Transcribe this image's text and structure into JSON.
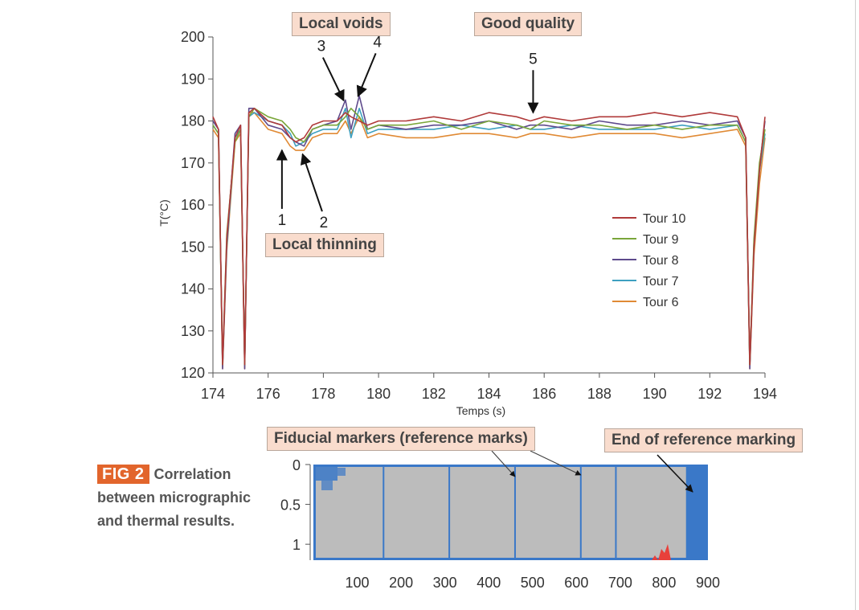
{
  "chart_data": [
    {
      "type": "line",
      "xlabel": "Temps (s)",
      "ylabel": "T(°C)",
      "xlim": [
        174,
        194
      ],
      "ylim": [
        120,
        200
      ],
      "xticks": [
        "174",
        "176",
        "178",
        "180",
        "182",
        "184",
        "186",
        "188",
        "190",
        "192",
        "194"
      ],
      "yticks": [
        "120",
        "130",
        "140",
        "150",
        "160",
        "170",
        "180",
        "190",
        "200"
      ],
      "grid": false,
      "legend_position": "right",
      "series": [
        {
          "name": "Tour 10",
          "color": "#b03a3a",
          "x": [
            174.0,
            174.2,
            174.35,
            174.5,
            174.8,
            175.0,
            175.15,
            175.3,
            175.5,
            176.0,
            176.5,
            176.8,
            177.0,
            177.3,
            177.6,
            178.0,
            178.5,
            178.8,
            179.0,
            179.3,
            179.6,
            180.0,
            181.0,
            182.0,
            183.0,
            184.0,
            185.0,
            185.5,
            186.0,
            187.0,
            188.0,
            189.0,
            190.0,
            191.0,
            192.0,
            193.0,
            193.3,
            193.45,
            193.6,
            193.8,
            194.0
          ],
          "y": [
            181,
            178,
            122,
            152,
            176,
            179,
            122,
            182,
            183,
            180,
            179,
            176,
            175,
            176,
            179,
            180,
            180,
            182,
            181,
            180,
            179,
            180,
            180,
            181,
            180,
            182,
            181,
            180,
            181,
            180,
            181,
            181,
            182,
            181,
            182,
            181,
            176,
            122,
            150,
            168,
            181
          ]
        },
        {
          "name": "Tour 9",
          "color": "#7aa63a",
          "x": [
            174.0,
            174.2,
            174.35,
            174.5,
            174.8,
            175.0,
            175.15,
            175.3,
            175.5,
            176.0,
            176.5,
            176.8,
            177.0,
            177.3,
            177.6,
            178.0,
            178.5,
            178.8,
            179.0,
            179.3,
            179.6,
            180.0,
            181.0,
            182.0,
            183.0,
            184.0,
            185.0,
            185.5,
            186.0,
            187.0,
            188.0,
            189.0,
            190.0,
            191.0,
            192.0,
            193.0,
            193.3,
            193.45,
            193.6,
            193.8,
            194.0
          ],
          "y": [
            179,
            177,
            122,
            153,
            175,
            178,
            122,
            181,
            183,
            181,
            180,
            178,
            176,
            175,
            178,
            179,
            179,
            181,
            183,
            181,
            178,
            179,
            179,
            180,
            178,
            180,
            179,
            178,
            180,
            179,
            179,
            178,
            179,
            178,
            179,
            179,
            175,
            122,
            152,
            170,
            178
          ]
        },
        {
          "name": "Tour 8",
          "color": "#5e4a8c",
          "x": [
            174.0,
            174.2,
            174.35,
            174.5,
            174.8,
            175.0,
            175.15,
            175.3,
            175.5,
            176.0,
            176.5,
            176.8,
            177.0,
            177.3,
            177.6,
            178.0,
            178.5,
            178.8,
            179.0,
            179.3,
            179.6,
            180.0,
            181.0,
            182.0,
            183.0,
            184.0,
            185.0,
            185.5,
            186.0,
            187.0,
            188.0,
            189.0,
            190.0,
            191.0,
            192.0,
            193.0,
            193.3,
            193.45,
            193.6,
            193.8,
            194.0
          ],
          "y": [
            180,
            178,
            121,
            151,
            177,
            179,
            121,
            183,
            183,
            179,
            178,
            176,
            175,
            174,
            178,
            179,
            180,
            185,
            178,
            186,
            178,
            179,
            178,
            179,
            179,
            180,
            178,
            179,
            179,
            178,
            180,
            179,
            179,
            180,
            179,
            180,
            176,
            121,
            151,
            169,
            180
          ]
        },
        {
          "name": "Tour 7",
          "color": "#3ea0c0",
          "x": [
            174.0,
            174.2,
            174.35,
            174.5,
            174.8,
            175.0,
            175.15,
            175.3,
            175.5,
            176.0,
            176.5,
            176.8,
            177.0,
            177.3,
            177.6,
            178.0,
            178.5,
            178.8,
            179.0,
            179.3,
            179.6,
            180.0,
            181.0,
            182.0,
            183.0,
            184.0,
            185.0,
            185.5,
            186.0,
            187.0,
            188.0,
            189.0,
            190.0,
            191.0,
            192.0,
            193.0,
            193.3,
            193.45,
            193.6,
            193.8,
            194.0
          ],
          "y": [
            179,
            177,
            122,
            150,
            176,
            178,
            122,
            181,
            182,
            180,
            179,
            177,
            174,
            175,
            177,
            178,
            178,
            183,
            176,
            183,
            177,
            178,
            178,
            178,
            179,
            178,
            179,
            178,
            178,
            179,
            178,
            178,
            178,
            179,
            178,
            179,
            175,
            122,
            150,
            168,
            177
          ]
        },
        {
          "name": "Tour 6",
          "color": "#e08a35",
          "x": [
            174.0,
            174.2,
            174.35,
            174.5,
            174.8,
            175.0,
            175.15,
            175.3,
            175.5,
            176.0,
            176.5,
            176.8,
            177.0,
            177.3,
            177.6,
            178.0,
            178.5,
            178.8,
            179.0,
            179.3,
            179.6,
            180.0,
            181.0,
            182.0,
            183.0,
            184.0,
            185.0,
            185.5,
            186.0,
            187.0,
            188.0,
            189.0,
            190.0,
            191.0,
            192.0,
            193.0,
            193.3,
            193.45,
            193.6,
            193.8,
            194.0
          ],
          "y": [
            178,
            176,
            121,
            149,
            175,
            177,
            121,
            182,
            182,
            178,
            177,
            174,
            173,
            173,
            176,
            177,
            177,
            180,
            177,
            181,
            176,
            177,
            176,
            176,
            177,
            177,
            176,
            177,
            177,
            176,
            177,
            177,
            177,
            176,
            177,
            178,
            174,
            121,
            148,
            165,
            176
          ]
        }
      ],
      "annotations": [
        {
          "text": "1",
          "x": 176.5,
          "y": 174
        },
        {
          "text": "2",
          "x": 177.2,
          "y": 173
        },
        {
          "text": "3",
          "x": 178.8,
          "y": 184
        },
        {
          "text": "4",
          "x": 179.2,
          "y": 185
        },
        {
          "text": "5",
          "x": 185.6,
          "y": 181
        }
      ],
      "callouts": {
        "local_voids": "Local voids",
        "good_quality": "Good quality",
        "local_thinning": "Local thinning"
      }
    },
    {
      "type": "heatmap",
      "xticks": [
        "100",
        "200",
        "300",
        "400",
        "500",
        "600",
        "700",
        "800",
        "900"
      ],
      "yticks": [
        "0",
        "0.5",
        "1"
      ],
      "xlim": [
        0,
        900
      ],
      "ylim": [
        0,
        1.2
      ],
      "background_color": "#bcbcbc",
      "marker_color": "#3a78c8",
      "defect_color": "#e8403a",
      "fiducial_marker_x": [
        160,
        310,
        460,
        610,
        690
      ],
      "end_region_x": [
        850,
        900
      ],
      "callouts": {
        "fiducial_markers": "Fiducial markers (reference marks)",
        "end_of_marking": "End of reference marking"
      }
    }
  ],
  "caption": {
    "badge": "FIG 2",
    "text": "Correlation between micrographic and thermal results."
  }
}
